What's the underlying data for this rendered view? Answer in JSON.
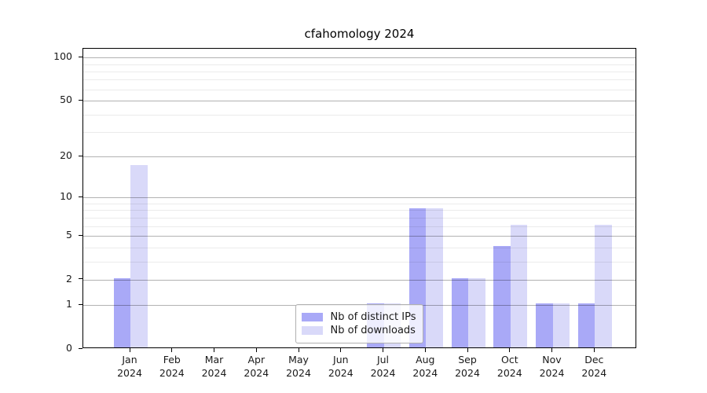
{
  "title": "cfahomology 2024",
  "chart_data": {
    "type": "bar",
    "title": "cfahomology 2024",
    "categories": [
      "Jan",
      "Feb",
      "Mar",
      "Apr",
      "May",
      "Jun",
      "Jul",
      "Aug",
      "Sep",
      "Oct",
      "Nov",
      "Dec"
    ],
    "category_year": "2024",
    "series": [
      {
        "name": "Nb of distinct IPs",
        "color": "#a9a9f7",
        "values": [
          2,
          0,
          0,
          0,
          0,
          0,
          1,
          8,
          2,
          4,
          1,
          1
        ]
      },
      {
        "name": "Nb of downloads",
        "color": "#d9d9f9",
        "values": [
          17,
          0,
          0,
          0,
          0,
          0,
          1,
          8,
          2,
          6,
          1,
          6
        ]
      }
    ],
    "yscale": "log1p",
    "ylim": [
      0,
      115
    ],
    "yticks": [
      0,
      1,
      2,
      5,
      10,
      20,
      50,
      100
    ],
    "minor_gridlines": [
      3,
      4,
      6,
      7,
      8,
      9,
      30,
      40,
      60,
      70,
      80,
      90
    ],
    "xlabel": "",
    "ylabel": "",
    "grid": true,
    "legend_position": "lower center",
    "legend_labels": [
      "Nb of distinct IPs",
      "Nb of downloads"
    ],
    "colors": {
      "background": "#ffffff",
      "axis": "#000000",
      "major_grid": "#b3b3b3",
      "minor_grid": "#ededed",
      "tick_text": "#1a1a1a"
    }
  }
}
